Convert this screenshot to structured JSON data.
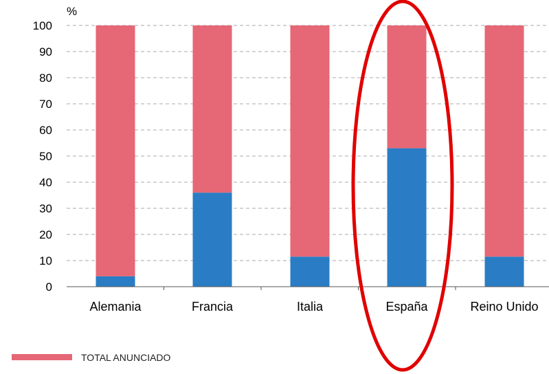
{
  "chart_data": {
    "type": "bar",
    "stacked": true,
    "yunit": "%",
    "ylim": [
      0,
      100
    ],
    "yticks": [
      0,
      10,
      20,
      30,
      40,
      50,
      60,
      70,
      80,
      90,
      100
    ],
    "grid": "horizontal-dashed",
    "categories": [
      "Alemania",
      "Francia",
      "Italia",
      "España",
      "Reino Unido"
    ],
    "series": [
      {
        "values": [
          4,
          36,
          11.5,
          53,
          11.5
        ],
        "color": "#2a7dc4"
      },
      {
        "name": "TOTAL ANUNCIADO",
        "values": [
          96,
          64,
          88.5,
          47,
          88.5
        ],
        "color": "#e66775"
      }
    ],
    "legend_position": "bottom-left",
    "annotation": {
      "type": "ellipse",
      "target_category": "España",
      "color": "#e00000"
    }
  }
}
